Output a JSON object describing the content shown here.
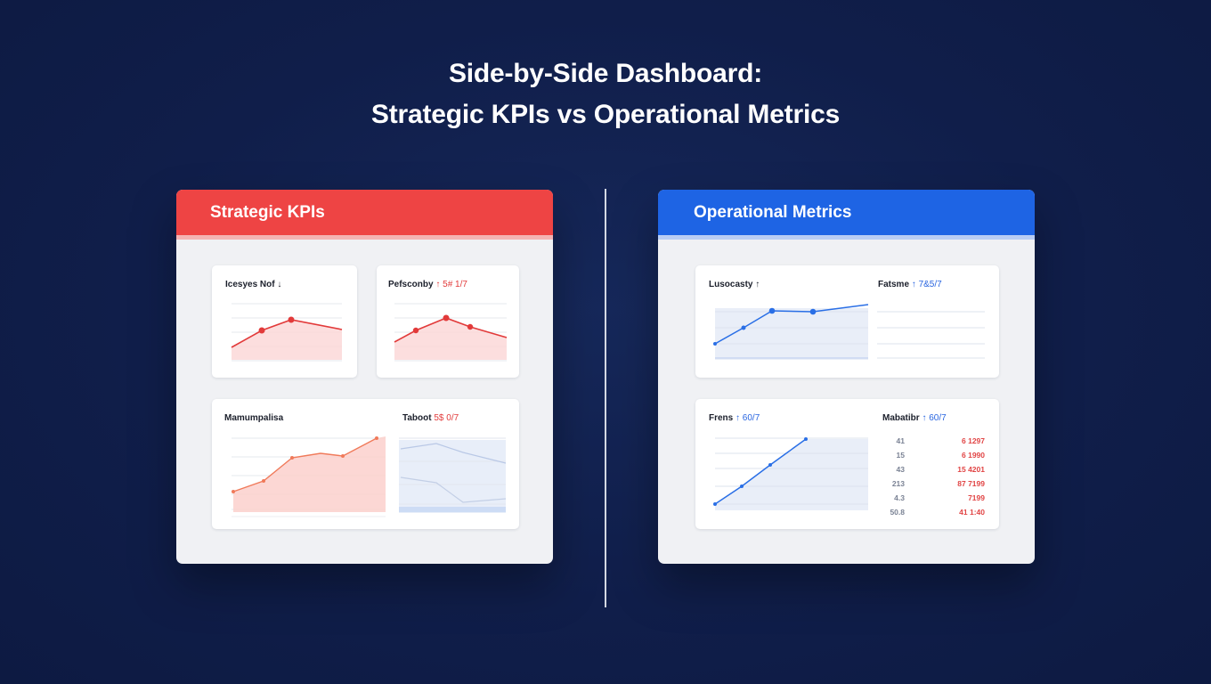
{
  "title": {
    "line1": "Side-by-Side Dashboard:",
    "line2": "Strategic KPIs vs Operational Metrics"
  },
  "colors": {
    "background": "#101e4a",
    "strategic_accent": "#ee4444",
    "operational_accent": "#1e64e4",
    "panel_bg": "#f0f1f4"
  },
  "left_panel": {
    "header": "Strategic KPIs",
    "cards": [
      {
        "title": "Icesyes Nof",
        "suffix": "↓"
      },
      {
        "title": "Pefsconby",
        "suffix": "↑ 5# 1/7"
      },
      {
        "title": "Mamumpalisa",
        "suffix": ""
      },
      {
        "title": "Taboot",
        "suffix": "5$ 0/7"
      }
    ]
  },
  "right_panel": {
    "header": "Operational Metrics",
    "cards": [
      {
        "title": "Lusocasty",
        "suffix": "↑"
      },
      {
        "title": "Fatsme",
        "suffix": "↑ 7&5/7"
      },
      {
        "title": "Frens",
        "suffix": "↑ 60/7"
      },
      {
        "title": "Mabatibr",
        "suffix": "↑ 60/7"
      }
    ],
    "table_rows": [
      {
        "a": "41",
        "b": "6  1297"
      },
      {
        "a": "15",
        "b": "6  1990"
      },
      {
        "a": "43",
        "b": "15  4201"
      },
      {
        "a": "213",
        "b": "87  7199"
      },
      {
        "a": "4.3",
        "b": "7199"
      },
      {
        "a": "50.8",
        "b": "41  1:40"
      }
    ]
  }
}
